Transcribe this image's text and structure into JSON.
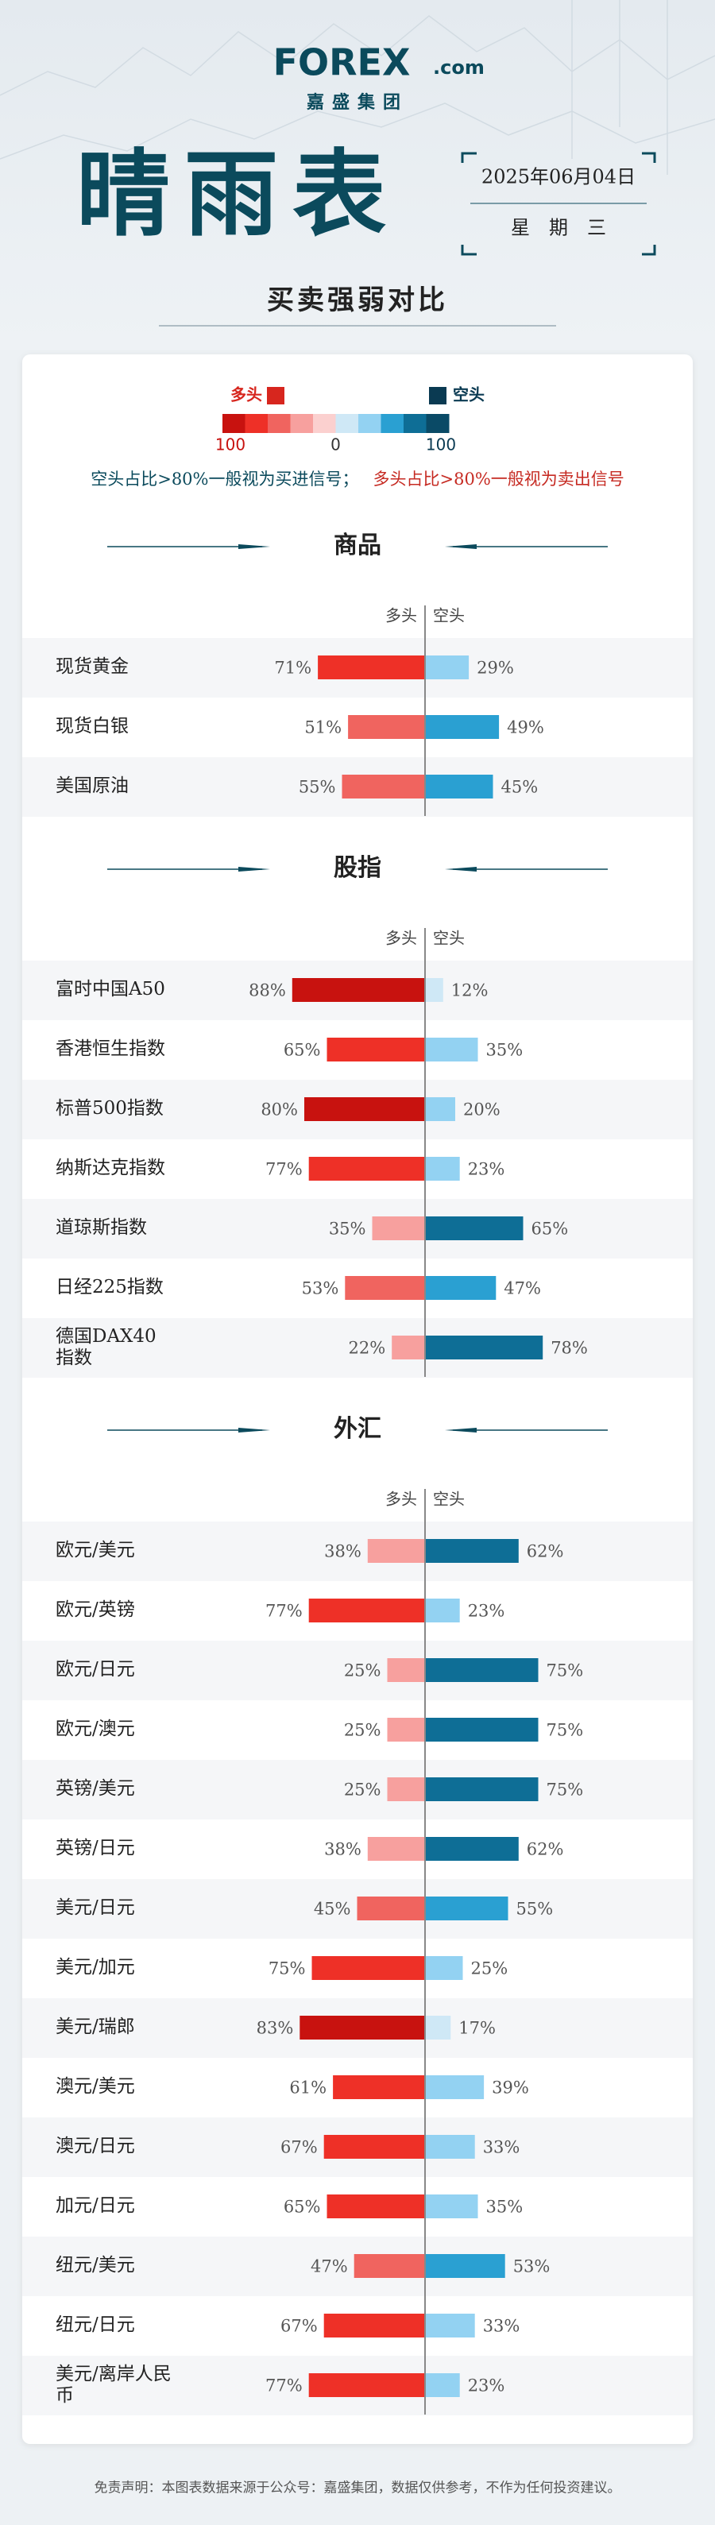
{
  "logo": {
    "brand": "FOREX",
    "suffix": ".com",
    "company": "嘉盛集团"
  },
  "header": {
    "title": "晴雨表",
    "date": "2025年06月04日",
    "weekday": "星　期　三",
    "subtitle": "买卖强弱对比"
  },
  "legend": {
    "long": "多头",
    "short": "空头",
    "ticks": [
      100,
      0,
      100
    ]
  },
  "color_scale": {
    "long": [
      "#fbd0cf",
      "#f7a09e",
      "#f0645f",
      "#ee3027",
      "#c8120f"
    ],
    "short": [
      "#cfe8f6",
      "#93d2f2",
      "#2aa0d2",
      "#0e6e96",
      "#0a4a66"
    ]
  },
  "notes": {
    "buy": "空头占比>80%一般视为买进信号；",
    "sell": "多头占比>80%一般视为卖出信号"
  },
  "chart_data": [
    {
      "type": "bar",
      "title": "商品",
      "categories": [
        "现货黄金",
        "现货白银",
        "美国原油"
      ],
      "series": [
        {
          "name": "多头",
          "values": [
            71,
            51,
            55
          ],
          "value_labels": [
            "71%",
            "51%",
            "55%"
          ]
        },
        {
          "name": "空头",
          "values": [
            29,
            49,
            45
          ],
          "value_labels": [
            "29%",
            "49%",
            "45%"
          ]
        }
      ]
    },
    {
      "type": "bar",
      "title": "股指",
      "categories": [
        "富时中国A50",
        "香港恒生指数",
        "标普500指数",
        "纳斯达克指数",
        "道琼斯指数",
        "日经225指数",
        "德国DAX40指数"
      ],
      "series": [
        {
          "name": "多头",
          "values": [
            88,
            65,
            80,
            77,
            35,
            53,
            22
          ],
          "value_labels": [
            "88%",
            "65%",
            "80%",
            "77%",
            "35%",
            "53%",
            "22%"
          ]
        },
        {
          "name": "空头",
          "values": [
            12,
            35,
            20,
            23,
            65,
            47,
            78
          ],
          "value_labels": [
            "12%",
            "35%",
            "20%",
            "23%",
            "65%",
            "47%",
            "78%"
          ]
        }
      ]
    },
    {
      "type": "bar",
      "title": "外汇",
      "categories": [
        "欧元/美元",
        "欧元/英镑",
        "欧元/日元",
        "欧元/澳元",
        "英镑/美元",
        "英镑/日元",
        "美元/日元",
        "美元/加元",
        "美元/瑞郎",
        "澳元/美元",
        "澳元/日元",
        "加元/日元",
        "纽元/美元",
        "纽元/日元",
        "美元/离岸人民币"
      ],
      "series": [
        {
          "name": "多头",
          "values": [
            38,
            77,
            25,
            25,
            25,
            38,
            45,
            75,
            83,
            61,
            67,
            65,
            47,
            67,
            77
          ],
          "value_labels": [
            "38%",
            "77%",
            "25%",
            "25%",
            "25%",
            "38%",
            "45%",
            "75%",
            "83%",
            "61%",
            "67%",
            "65%",
            "47%",
            "67%",
            "77%"
          ]
        },
        {
          "name": "空头",
          "values": [
            62,
            23,
            75,
            75,
            75,
            62,
            55,
            25,
            17,
            39,
            33,
            35,
            53,
            33,
            23
          ],
          "value_labels": [
            "62%",
            "23%",
            "75%",
            "75%",
            "75%",
            "62%",
            "55%",
            "25%",
            "17%",
            "39%",
            "33%",
            "35%",
            "53%",
            "33%",
            "23%"
          ]
        }
      ]
    }
  ],
  "footer": "免责声明：本图表数据来源于公众号：嘉盛集团，数据仅供参考，不作为任何投资建议。"
}
